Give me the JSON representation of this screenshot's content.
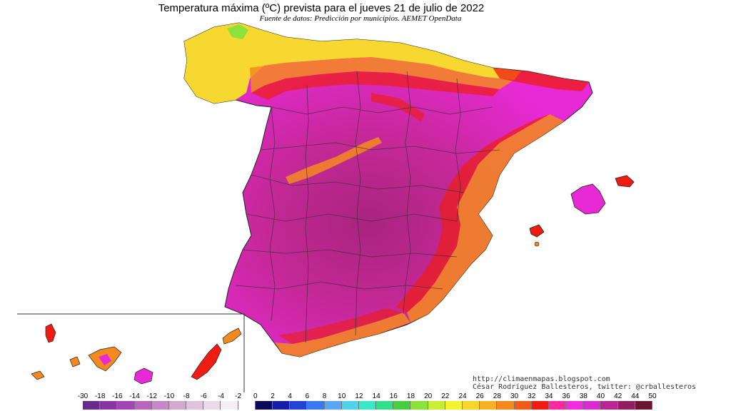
{
  "title": "Temperatura máxima (ºC) prevista para el jueves 21 de julio de 2022",
  "subtitle": "Fuente de datos: Predicción por municipios. AEMET OpenData",
  "credits": {
    "line1": "http://climaenmapas.blogspot.com",
    "line2": "César Rodríguez Ballesteros, twitter: @crballesteros"
  },
  "legend": {
    "labels": [
      "-30",
      "-18",
      "-16",
      "-14",
      "-12",
      "-10",
      "-8",
      "-6",
      "-4",
      "-2",
      "0",
      "2",
      "4",
      "6",
      "8",
      "10",
      "12",
      "14",
      "16",
      "18",
      "20",
      "22",
      "24",
      "26",
      "28",
      "30",
      "32",
      "34",
      "36",
      "38",
      "40",
      "42",
      "44",
      "50"
    ],
    "colors": [
      "#6a2a8a",
      "#8a35a5",
      "#a445b5",
      "#b865c0",
      "#c887c8",
      "#d6a6d2",
      "#e0c3dd",
      "#ebdbe8",
      "#f4f0f4",
      "#ffffff",
      "#0a0a5a",
      "#1a1ea6",
      "#2244d6",
      "#3a78ee",
      "#5aa8f2",
      "#4fd2ea",
      "#3ae8c8",
      "#30e08a",
      "#46d040",
      "#8ae23a",
      "#c8ee34",
      "#f6f430",
      "#fad62a",
      "#f8b024",
      "#f48a1e",
      "#f25a18",
      "#ee1c12",
      "#ff2aa2",
      "#f02ee0",
      "#d82ad0",
      "#b82698",
      "#8e2060",
      "#6a1632"
    ]
  },
  "colors": {
    "hot_magenta": "#e82ad6",
    "very_hot": "#b8248c",
    "red": "#ee1c12",
    "orange": "#f48a1e",
    "yellow": "#f6f430",
    "border": "#3a3a3a"
  }
}
